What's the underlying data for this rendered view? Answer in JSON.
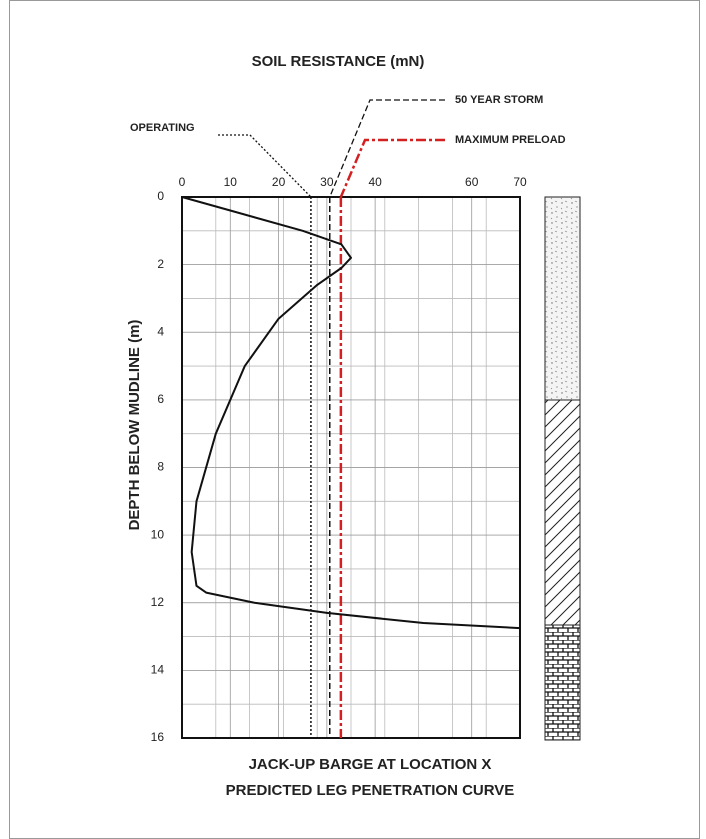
{
  "chart_data": {
    "type": "line",
    "title": "SOIL RESISTANCE (mN)",
    "ylabel": "DEPTH BELOW MUDLINE (m)",
    "caption": [
      "JACK-UP BARGE AT LOCATION X",
      "PREDICTED LEG PENETRATION CURVE"
    ],
    "xlim": [
      0,
      70
    ],
    "xticks": [
      0,
      10,
      20,
      30,
      40,
      60,
      70
    ],
    "ylim": [
      0,
      16
    ],
    "yticks": [
      0,
      2,
      4,
      6,
      8,
      10,
      12,
      14,
      16
    ],
    "y_inverted": true,
    "grid": true,
    "series": [
      {
        "name": null,
        "color": "#111111",
        "dash": "solid",
        "x": [
          0,
          10,
          25,
          33,
          35,
          33,
          28,
          20,
          13,
          7,
          3,
          2,
          3,
          5,
          15,
          30,
          50,
          70
        ],
        "y": [
          0,
          0.4,
          1.0,
          1.4,
          1.8,
          2.1,
          2.6,
          3.6,
          5,
          7,
          9,
          10.5,
          11.5,
          11.7,
          12,
          12.3,
          12.6,
          12.75
        ]
      }
    ],
    "limits": [
      {
        "name": "OPERATING",
        "color": "#111111",
        "dash": "dotted",
        "value": 26.7
      },
      {
        "name": "50 YEAR STORM",
        "color": "#111111",
        "dash": "dashed",
        "value": 30.6
      },
      {
        "name": "MAXIMUM PRELOAD",
        "color": "#d42020",
        "dash": "dashdot",
        "value": 32.9
      }
    ]
  }
}
